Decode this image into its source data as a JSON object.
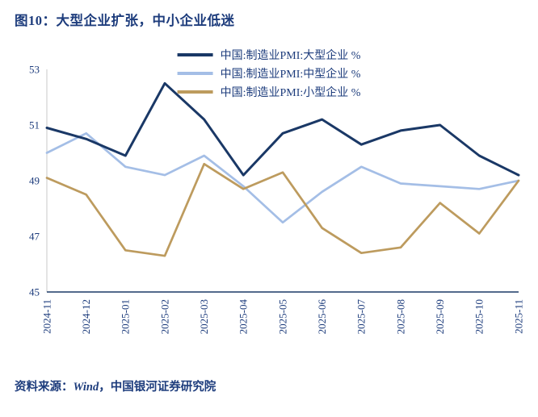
{
  "title": "图10：大型企业扩张，中小企业低迷",
  "source": {
    "prefix": "资料来源：",
    "wind": "Wind",
    "suffix": "，中国银河证券研究院"
  },
  "chart_data": {
    "type": "line",
    "title": "图10：大型企业扩张，中小企业低迷",
    "categories": [
      "2024-11",
      "2024-12",
      "2025-01",
      "2025-02",
      "2025-03",
      "2025-04",
      "2025-05",
      "2025-06",
      "2025-07",
      "2025-08",
      "2025-09",
      "2025-10",
      "2025-11"
    ],
    "series": [
      {
        "name": "中国:制造业PMI:大型企业 %",
        "color": "#1a3866",
        "values": [
          50.9,
          50.5,
          49.9,
          52.5,
          51.2,
          49.2,
          50.7,
          51.2,
          50.3,
          50.8,
          51.0,
          49.9,
          49.2
        ]
      },
      {
        "name": "中国:制造业PMI:中型企业 %",
        "color": "#a4bee6",
        "values": [
          50.0,
          50.7,
          49.5,
          49.2,
          49.9,
          48.8,
          47.5,
          48.6,
          49.5,
          48.9,
          48.8,
          48.7,
          49.0
        ]
      },
      {
        "name": "中国:制造业PMI:小型企业 %",
        "color": "#bd9b5e",
        "values": [
          49.1,
          48.5,
          46.5,
          46.3,
          49.6,
          48.7,
          49.3,
          47.3,
          46.4,
          46.6,
          48.2,
          47.1,
          49.0
        ]
      }
    ],
    "ylabel": "",
    "xlabel": "",
    "ylim": [
      45,
      53
    ],
    "yticks": [
      45,
      47,
      49,
      51,
      53
    ],
    "grid": false,
    "legend_position": "top"
  }
}
